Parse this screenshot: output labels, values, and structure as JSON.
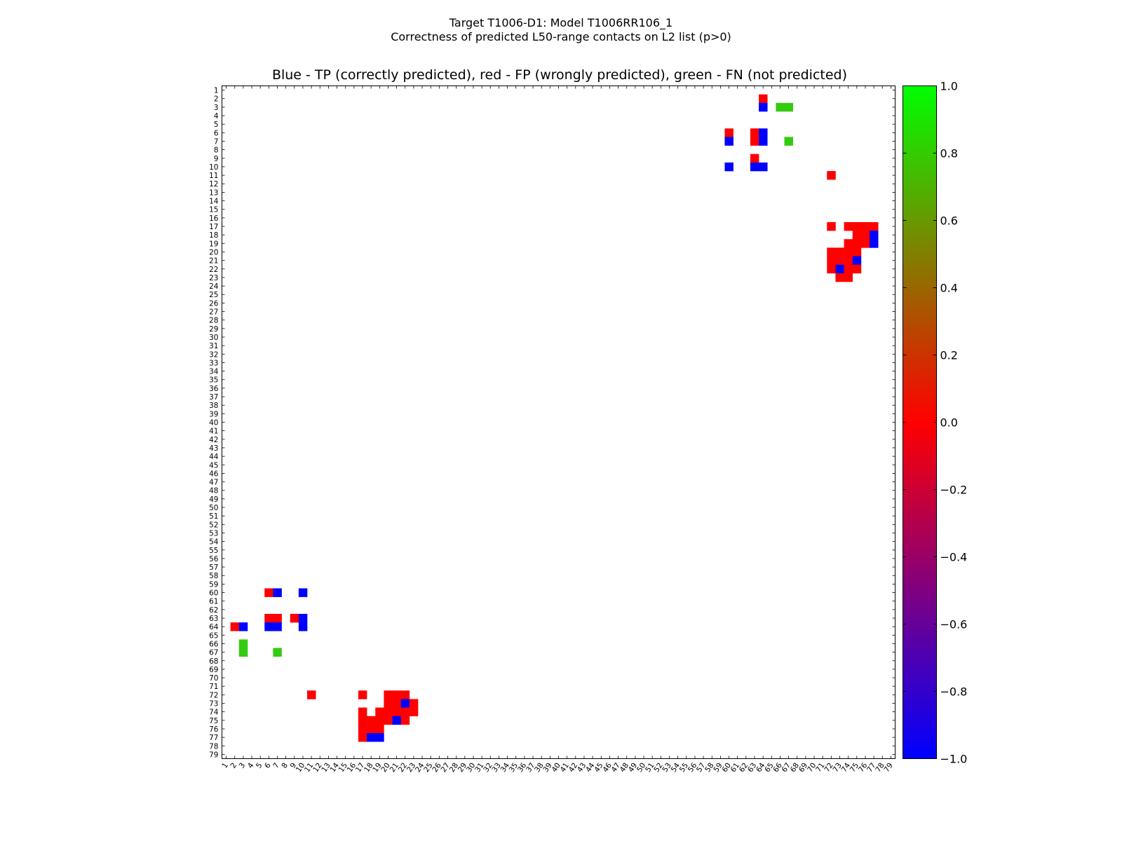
{
  "figure": {
    "title_line1": "Target T1006-D1: Model T1006RR106_1",
    "title_line2": "Correctness of predicted L50-range contacts on L2 list (p>0)"
  },
  "chart_data": {
    "type": "heatmap",
    "title": "Blue - TP (correctly predicted), red - FP (wrongly predicted), green - FN (not predicted)",
    "xlabel": "",
    "ylabel": "",
    "n": 79,
    "xlim": [
      1,
      79
    ],
    "ylim": [
      1,
      79
    ],
    "x_tick_labels": [
      "1",
      "2",
      "3",
      "4",
      "5",
      "6",
      "7",
      "8",
      "9",
      "10",
      "11",
      "12",
      "13",
      "14",
      "15",
      "16",
      "17",
      "18",
      "19",
      "20",
      "21",
      "22",
      "23",
      "24",
      "25",
      "26",
      "27",
      "28",
      "29",
      "30",
      "31",
      "32",
      "33",
      "34",
      "35",
      "36",
      "37",
      "38",
      "39",
      "40",
      "41",
      "42",
      "43",
      "44",
      "45",
      "46",
      "47",
      "48",
      "49",
      "50",
      "51",
      "52",
      "53",
      "54",
      "55",
      "56",
      "57",
      "58",
      "59",
      "60",
      "61",
      "62",
      "63",
      "64",
      "65",
      "66",
      "67",
      "68",
      "69",
      "70",
      "71",
      "72",
      "73",
      "74",
      "75",
      "76",
      "77",
      "78",
      "79"
    ],
    "y_tick_labels": [
      "1",
      "2",
      "3",
      "4",
      "5",
      "6",
      "7",
      "8",
      "9",
      "10",
      "11",
      "12",
      "13",
      "14",
      "15",
      "16",
      "17",
      "18",
      "19",
      "20",
      "21",
      "22",
      "23",
      "24",
      "25",
      "26",
      "27",
      "28",
      "29",
      "30",
      "31",
      "32",
      "33",
      "34",
      "35",
      "36",
      "37",
      "38",
      "39",
      "40",
      "41",
      "42",
      "43",
      "44",
      "45",
      "46",
      "47",
      "48",
      "49",
      "50",
      "51",
      "52",
      "53",
      "54",
      "55",
      "56",
      "57",
      "58",
      "59",
      "60",
      "61",
      "62",
      "63",
      "64",
      "65",
      "66",
      "67",
      "68",
      "69",
      "70",
      "71",
      "72",
      "73",
      "74",
      "75",
      "76",
      "77",
      "78",
      "79"
    ],
    "colorbar": {
      "range": [
        -1.0,
        1.0
      ],
      "tick_values": [
        1.0,
        0.8,
        0.6,
        0.4,
        0.2,
        0.0,
        -0.2,
        -0.4,
        -0.6,
        -0.8,
        -1.0
      ],
      "tick_labels": [
        "1.0",
        "0.8",
        "0.6",
        "0.4",
        "0.2",
        "0.0",
        "−0.2",
        "−0.4",
        "−0.6",
        "−0.8",
        "−1.0"
      ],
      "stops": [
        {
          "value": 1.0,
          "color": "#00ff00"
        },
        {
          "value": 0.5,
          "color": "#808000"
        },
        {
          "value": 0.0,
          "color": "#ff0000"
        },
        {
          "value": -0.5,
          "color": "#800080"
        },
        {
          "value": -1.0,
          "color": "#0000ff"
        }
      ]
    },
    "legend": {
      "tp": "Blue - TP",
      "fp": "red - FP",
      "fn": "green - FN"
    },
    "values_legend": {
      "TP": -1.0,
      "FP": 0.0,
      "FN": 0.8
    },
    "cells": [
      {
        "i": 2,
        "j": 64,
        "v": 0.0
      },
      {
        "i": 3,
        "j": 64,
        "v": -1.0
      },
      {
        "i": 3,
        "j": 66,
        "v": 0.8
      },
      {
        "i": 3,
        "j": 67,
        "v": 0.8
      },
      {
        "i": 6,
        "j": 60,
        "v": 0.0
      },
      {
        "i": 6,
        "j": 63,
        "v": 0.0
      },
      {
        "i": 6,
        "j": 64,
        "v": -1.0
      },
      {
        "i": 7,
        "j": 60,
        "v": -1.0
      },
      {
        "i": 7,
        "j": 63,
        "v": 0.0
      },
      {
        "i": 7,
        "j": 64,
        "v": -1.0
      },
      {
        "i": 7,
        "j": 67,
        "v": 0.8
      },
      {
        "i": 9,
        "j": 63,
        "v": 0.0
      },
      {
        "i": 10,
        "j": 60,
        "v": -1.0
      },
      {
        "i": 10,
        "j": 63,
        "v": -1.0
      },
      {
        "i": 10,
        "j": 64,
        "v": -1.0
      },
      {
        "i": 11,
        "j": 72,
        "v": 0.0
      },
      {
        "i": 17,
        "j": 72,
        "v": 0.0
      },
      {
        "i": 17,
        "j": 74,
        "v": 0.0
      },
      {
        "i": 17,
        "j": 75,
        "v": 0.0
      },
      {
        "i": 17,
        "j": 76,
        "v": 0.0
      },
      {
        "i": 17,
        "j": 77,
        "v": 0.0
      },
      {
        "i": 18,
        "j": 75,
        "v": 0.0
      },
      {
        "i": 18,
        "j": 76,
        "v": 0.0
      },
      {
        "i": 18,
        "j": 77,
        "v": -1.0
      },
      {
        "i": 19,
        "j": 74,
        "v": 0.0
      },
      {
        "i": 19,
        "j": 75,
        "v": 0.0
      },
      {
        "i": 19,
        "j": 76,
        "v": 0.0
      },
      {
        "i": 19,
        "j": 77,
        "v": -1.0
      },
      {
        "i": 20,
        "j": 72,
        "v": 0.0
      },
      {
        "i": 20,
        "j": 73,
        "v": 0.0
      },
      {
        "i": 20,
        "j": 74,
        "v": 0.0
      },
      {
        "i": 20,
        "j": 75,
        "v": 0.0
      },
      {
        "i": 21,
        "j": 72,
        "v": 0.0
      },
      {
        "i": 21,
        "j": 73,
        "v": 0.0
      },
      {
        "i": 21,
        "j": 74,
        "v": 0.0
      },
      {
        "i": 21,
        "j": 75,
        "v": -1.0
      },
      {
        "i": 22,
        "j": 72,
        "v": 0.0
      },
      {
        "i": 22,
        "j": 73,
        "v": -1.0
      },
      {
        "i": 22,
        "j": 74,
        "v": 0.0
      },
      {
        "i": 22,
        "j": 75,
        "v": 0.0
      },
      {
        "i": 23,
        "j": 73,
        "v": 0.0
      },
      {
        "i": 23,
        "j": 74,
        "v": 0.0
      },
      {
        "i": 60,
        "j": 6,
        "v": 0.0
      },
      {
        "i": 60,
        "j": 7,
        "v": -1.0
      },
      {
        "i": 60,
        "j": 10,
        "v": -1.0
      },
      {
        "i": 63,
        "j": 6,
        "v": 0.0
      },
      {
        "i": 63,
        "j": 7,
        "v": 0.0
      },
      {
        "i": 63,
        "j": 9,
        "v": 0.0
      },
      {
        "i": 63,
        "j": 10,
        "v": -1.0
      },
      {
        "i": 64,
        "j": 2,
        "v": 0.0
      },
      {
        "i": 64,
        "j": 3,
        "v": -1.0
      },
      {
        "i": 64,
        "j": 6,
        "v": -1.0
      },
      {
        "i": 64,
        "j": 7,
        "v": -1.0
      },
      {
        "i": 64,
        "j": 10,
        "v": -1.0
      },
      {
        "i": 66,
        "j": 3,
        "v": 0.8
      },
      {
        "i": 67,
        "j": 3,
        "v": 0.8
      },
      {
        "i": 67,
        "j": 7,
        "v": 0.8
      },
      {
        "i": 72,
        "j": 11,
        "v": 0.0
      },
      {
        "i": 72,
        "j": 17,
        "v": 0.0
      },
      {
        "i": 72,
        "j": 20,
        "v": 0.0
      },
      {
        "i": 72,
        "j": 21,
        "v": 0.0
      },
      {
        "i": 72,
        "j": 22,
        "v": 0.0
      },
      {
        "i": 73,
        "j": 20,
        "v": 0.0
      },
      {
        "i": 73,
        "j": 21,
        "v": 0.0
      },
      {
        "i": 73,
        "j": 22,
        "v": -1.0
      },
      {
        "i": 73,
        "j": 23,
        "v": 0.0
      },
      {
        "i": 74,
        "j": 17,
        "v": 0.0
      },
      {
        "i": 74,
        "j": 19,
        "v": 0.0
      },
      {
        "i": 74,
        "j": 20,
        "v": 0.0
      },
      {
        "i": 74,
        "j": 21,
        "v": 0.0
      },
      {
        "i": 74,
        "j": 22,
        "v": 0.0
      },
      {
        "i": 74,
        "j": 23,
        "v": 0.0
      },
      {
        "i": 75,
        "j": 17,
        "v": 0.0
      },
      {
        "i": 75,
        "j": 18,
        "v": 0.0
      },
      {
        "i": 75,
        "j": 19,
        "v": 0.0
      },
      {
        "i": 75,
        "j": 20,
        "v": 0.0
      },
      {
        "i": 75,
        "j": 21,
        "v": -1.0
      },
      {
        "i": 75,
        "j": 22,
        "v": 0.0
      },
      {
        "i": 76,
        "j": 17,
        "v": 0.0
      },
      {
        "i": 76,
        "j": 18,
        "v": 0.0
      },
      {
        "i": 76,
        "j": 19,
        "v": 0.0
      },
      {
        "i": 77,
        "j": 17,
        "v": 0.0
      },
      {
        "i": 77,
        "j": 18,
        "v": -1.0
      },
      {
        "i": 77,
        "j": 19,
        "v": -1.0
      }
    ]
  }
}
